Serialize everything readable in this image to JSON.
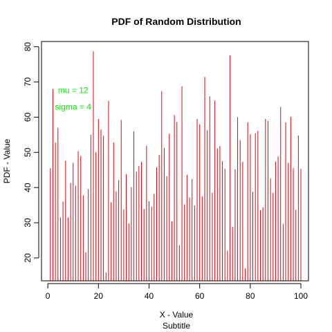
{
  "chart_data": {
    "type": "bar",
    "style": "histogram-lines",
    "title": "PDF of Random Distribution",
    "xlabel": "X - Value",
    "subtitle": "Subtitle",
    "ylabel": "PDF - Value",
    "xlim": [
      -2.5,
      103
    ],
    "ylim": [
      13.5,
      81.5
    ],
    "xticks": [
      0,
      20,
      40,
      60,
      80,
      100
    ],
    "yticks": [
      20,
      30,
      40,
      50,
      60,
      70,
      80
    ],
    "grid": false,
    "line_color": "#e5000b",
    "annotation_color": "#00ee00",
    "annotations": [
      {
        "text": "mu = 12",
        "x": 10,
        "y": 67.6
      },
      {
        "text": "sigma = 4",
        "x": 10,
        "y": 62.9
      }
    ],
    "x": [
      1,
      2,
      3,
      4,
      5,
      6,
      7,
      8,
      9,
      10,
      11,
      12,
      13,
      14,
      15,
      16,
      17,
      18,
      19,
      20,
      21,
      22,
      23,
      24,
      25,
      26,
      27,
      28,
      29,
      30,
      31,
      32,
      33,
      34,
      35,
      36,
      37,
      38,
      39,
      40,
      41,
      42,
      43,
      44,
      45,
      46,
      47,
      48,
      49,
      50,
      51,
      52,
      53,
      54,
      55,
      56,
      57,
      58,
      59,
      60,
      61,
      62,
      63,
      64,
      65,
      66,
      67,
      68,
      69,
      70,
      71,
      72,
      73,
      74,
      75,
      76,
      77,
      78,
      79,
      80,
      81,
      82,
      83,
      84,
      85,
      86,
      87,
      88,
      89,
      90,
      91,
      92,
      93,
      94,
      95,
      96,
      97,
      98,
      99,
      100
    ],
    "values": [
      45.5,
      68,
      52.8,
      57,
      31.5,
      36,
      47.6,
      31.5,
      41.3,
      47,
      40.5,
      50.3,
      49,
      37.8,
      21.6,
      39.6,
      55,
      78.7,
      50.1,
      59.5,
      56.5,
      54.7,
      15.9,
      64.6,
      35.8,
      52.8,
      38.9,
      42.1,
      59.2,
      33.8,
      43.8,
      29.8,
      40.1,
      56,
      44.5,
      46.1,
      47.3,
      33.9,
      51.9,
      36.1,
      34.6,
      38.2,
      45.8,
      49.3,
      67.4,
      51.3,
      43.2,
      55.3,
      30.4,
      60.6,
      58.6,
      23.6,
      68.8,
      35.2,
      43.6,
      37.2,
      42.4,
      34.9,
      59.5,
      58,
      37.5,
      71.4,
      56.3,
      65.9,
      38.5,
      64.7,
      51.1,
      51.8,
      47.5,
      45.3,
      22.1,
      77.6,
      28.8,
      45.2,
      60,
      53.5,
      47.3,
      17,
      58.5,
      55.2,
      38.8,
      55.4,
      56.1,
      33.6,
      34.4,
      59.5,
      58.9,
      42.6,
      38.5,
      47.4,
      48.8,
      62.9,
      29.7,
      58.5,
      47,
      60.1,
      45.5,
      33.7,
      54.8,
      45.3
    ]
  }
}
